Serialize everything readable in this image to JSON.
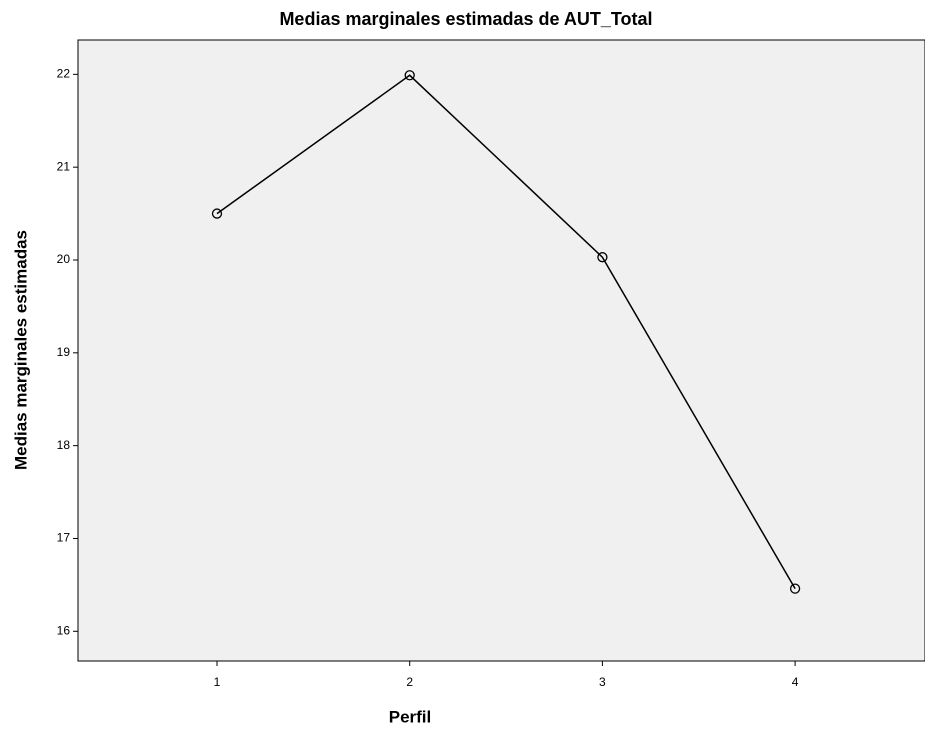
{
  "chart_data": {
    "type": "line",
    "title": "Medias marginales estimadas de AUT_Total",
    "x_label": "Perfil",
    "y_label": "Medias marginales estimadas",
    "categories": [
      "1",
      "2",
      "3",
      "4"
    ],
    "series": [
      {
        "name": "AUT_Total",
        "color": "#000000",
        "values": [
          20.5,
          21.99,
          20.03,
          16.46
        ]
      }
    ],
    "ylim": [
      15.68,
      22.37
    ],
    "yticks": [
      16,
      17,
      18,
      19,
      20,
      21,
      22
    ],
    "grid": false
  }
}
